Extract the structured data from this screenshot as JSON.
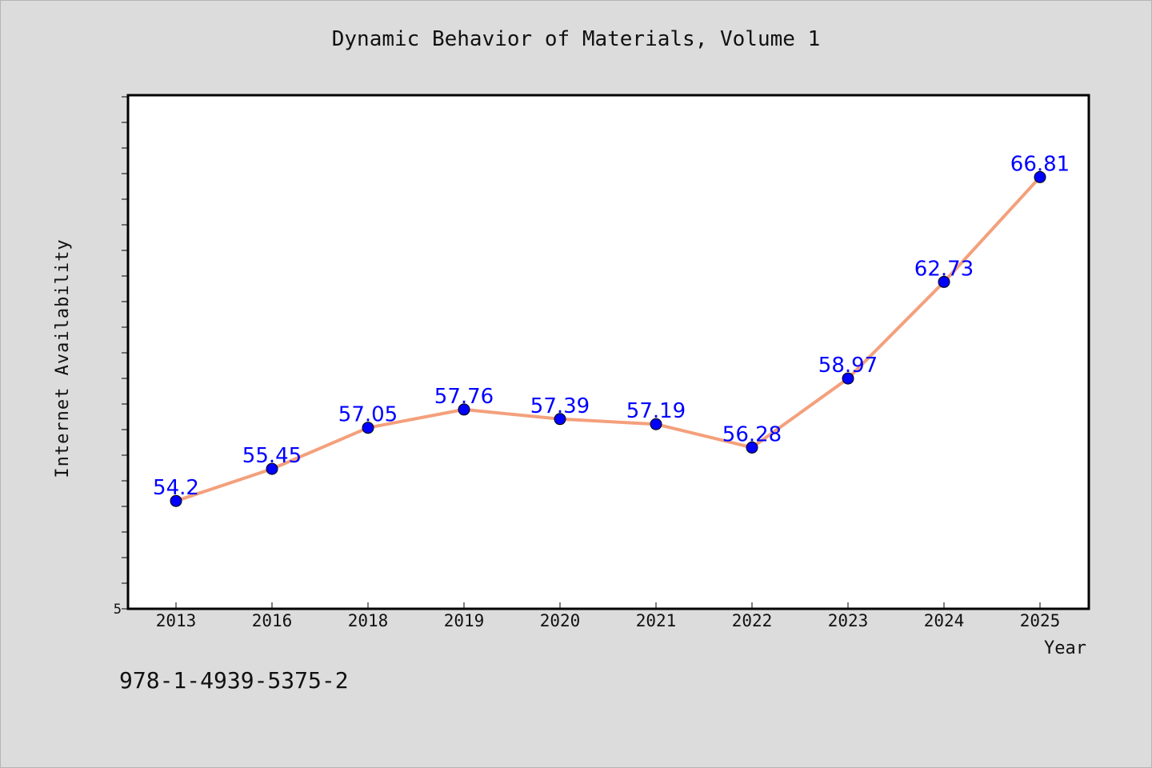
{
  "chart_data": {
    "type": "line",
    "title": "Dynamic Behavior of Materials, Volume 1",
    "xlabel": "Year",
    "ylabel": "Internet Availability",
    "categories": [
      "2013",
      "2016",
      "2018",
      "2019",
      "2020",
      "2021",
      "2022",
      "2023",
      "2024",
      "2025"
    ],
    "series": [
      {
        "values": [
          54.2,
          55.45,
          57.05,
          57.76,
          57.39,
          57.19,
          56.28,
          58.97,
          62.73,
          66.81
        ],
        "data_labels": [
          "54.2",
          "55.45",
          "57.05",
          "57.76",
          "57.39",
          "57.19",
          "56.28",
          "58.97",
          "62.73",
          "66.81"
        ]
      }
    ],
    "y_tick_labels": [
      "5"
    ],
    "ylim": [
      50,
      70
    ],
    "grid": false,
    "legend": "none",
    "colors": {
      "line": "#f4a07c",
      "marker": "#0000ff",
      "data_label": "#0000ff",
      "plot_background": "#ffffff",
      "page_background": "#dcdcdc"
    }
  },
  "footer": {
    "isbn": "978-1-4939-5375-2"
  }
}
